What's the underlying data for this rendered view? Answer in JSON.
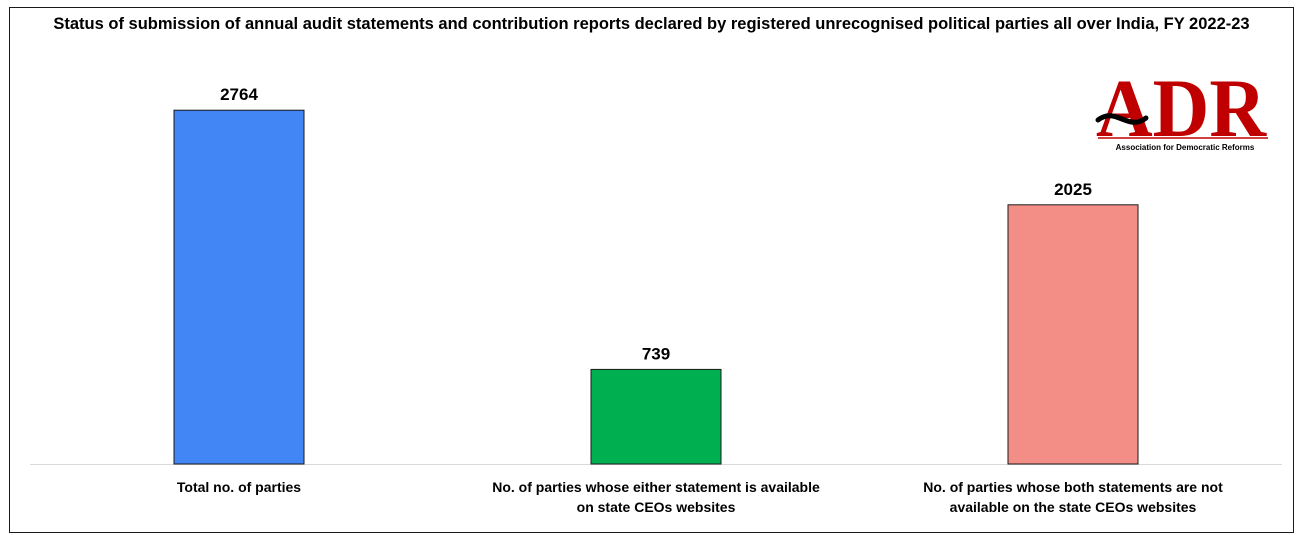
{
  "chart_data": {
    "type": "bar",
    "title": "Status of submission of annual audit statements and contribution reports declared by registered unrecognised political parties all over India, FY 2022-23",
    "categories": [
      [
        "Total no. of parties"
      ],
      [
        "No. of parties whose either statement is available",
        "on state CEOs websites"
      ],
      [
        "No. of parties whose both statements are not",
        "available on the state CEOs websites"
      ]
    ],
    "values": [
      2764,
      739,
      2025
    ],
    "data_labels": [
      "2764",
      "739",
      "2025"
    ],
    "bar_colors": [
      "#4285f4",
      "#00b050",
      "#f28e86"
    ],
    "xlabel": "",
    "ylabel": "",
    "ylim": [
      0,
      3000
    ],
    "grid": false,
    "legend": "none"
  },
  "logo": {
    "mark": "ADR",
    "tagline": "Association for Democratic Reforms",
    "color": "#c00000"
  }
}
